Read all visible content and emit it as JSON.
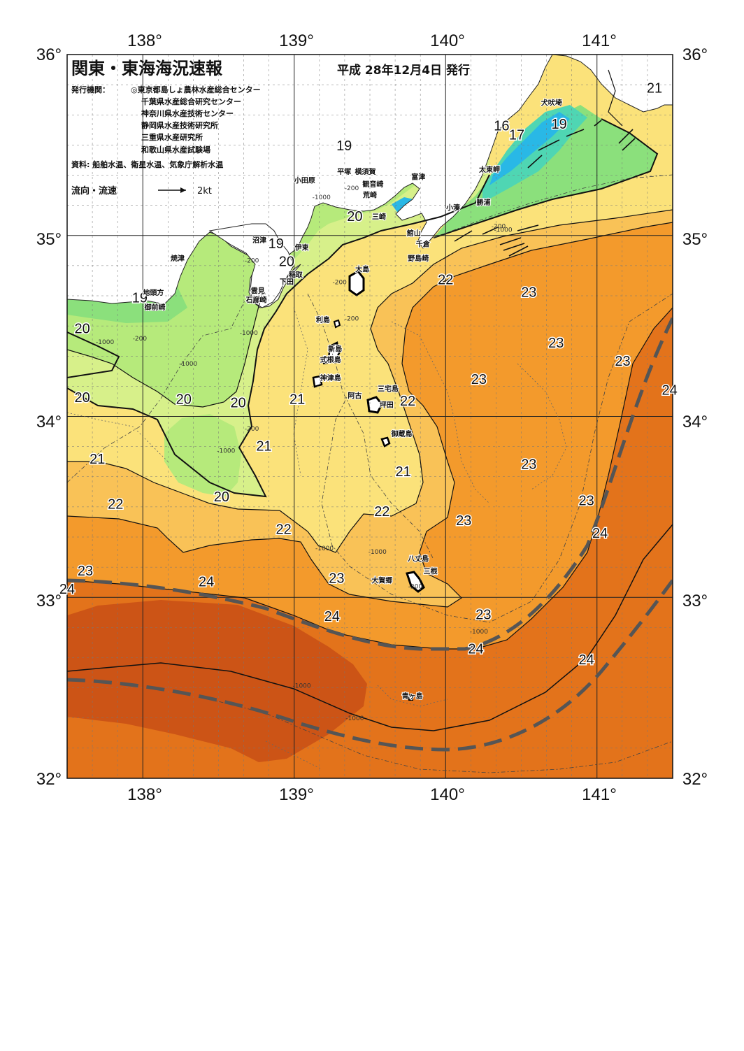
{
  "header": {
    "title": "関東・東海海況速報",
    "date": "平成 28年12月4日 発行",
    "issuer_label": "発行機関：",
    "issuers": [
      "◎東京都島しょ農林水産総合センター",
      "千葉県水産総合研究センター",
      "神奈川県水産技術センター",
      "静岡県水産技術研究所",
      "三重県水産研究所",
      "和歌山県水産試験場"
    ],
    "source": "資料: 船舶水温、衛星水温、気象庁解析水温",
    "flow_legend": "流向・流速",
    "flow_scale": "2kt"
  },
  "axes": {
    "lon_top": [
      "138°",
      "139°",
      "140°",
      "141°"
    ],
    "lon_bottom": [
      "138°",
      "139°",
      "140°",
      "141°"
    ],
    "lat_left": [
      "36°",
      "35°",
      "34°",
      "33°",
      "32°"
    ],
    "lat_right": [
      "36°",
      "35°",
      "34°",
      "33°",
      "32°"
    ]
  },
  "colors": {
    "t16": "#29b8e6",
    "t17": "#4fd6b3",
    "t18": "#8be07c",
    "t19": "#b6ea7b",
    "t20": "#d7f08a",
    "t21": "#fbe27a",
    "t22": "#f9c257",
    "t23": "#f39a2c",
    "t24": "#e3731b",
    "t25": "#cc5416",
    "land": "#ffffff",
    "kuroshio": "#555555"
  },
  "temp_labels": [
    {
      "text": "21",
      "lon": 141.38,
      "lat": 35.79
    },
    {
      "text": "16",
      "lon": 140.37,
      "lat": 35.58
    },
    {
      "text": "17",
      "lon": 140.47,
      "lat": 35.53
    },
    {
      "text": "19",
      "lon": 140.75,
      "lat": 35.59
    },
    {
      "text": "19",
      "lon": 139.33,
      "lat": 35.47
    },
    {
      "text": "20",
      "lon": 139.4,
      "lat": 35.08
    },
    {
      "text": "19",
      "lon": 138.88,
      "lat": 34.93
    },
    {
      "text": "20",
      "lon": 138.95,
      "lat": 34.83
    },
    {
      "text": "22",
      "lon": 140.0,
      "lat": 34.73
    },
    {
      "text": "23",
      "lon": 140.55,
      "lat": 34.66
    },
    {
      "text": "19",
      "lon": 137.98,
      "lat": 34.63
    },
    {
      "text": "20",
      "lon": 137.6,
      "lat": 34.46
    },
    {
      "text": "23",
      "lon": 140.73,
      "lat": 34.38
    },
    {
      "text": "23",
      "lon": 141.17,
      "lat": 34.28
    },
    {
      "text": "23",
      "lon": 140.22,
      "lat": 34.18
    },
    {
      "text": "24",
      "lon": 141.48,
      "lat": 34.12
    },
    {
      "text": "20",
      "lon": 137.6,
      "lat": 34.08
    },
    {
      "text": "20",
      "lon": 138.27,
      "lat": 34.07
    },
    {
      "text": "20",
      "lon": 138.63,
      "lat": 34.05
    },
    {
      "text": "21",
      "lon": 139.02,
      "lat": 34.07
    },
    {
      "text": "22",
      "lon": 139.75,
      "lat": 34.06
    },
    {
      "text": "21",
      "lon": 138.8,
      "lat": 33.81
    },
    {
      "text": "21",
      "lon": 137.7,
      "lat": 33.74
    },
    {
      "text": "23",
      "lon": 140.55,
      "lat": 33.71
    },
    {
      "text": "21",
      "lon": 139.72,
      "lat": 33.67
    },
    {
      "text": "20",
      "lon": 138.52,
      "lat": 33.53
    },
    {
      "text": "23",
      "lon": 140.93,
      "lat": 33.51
    },
    {
      "text": "22",
      "lon": 137.82,
      "lat": 33.49
    },
    {
      "text": "22",
      "lon": 139.58,
      "lat": 33.45
    },
    {
      "text": "23",
      "lon": 140.12,
      "lat": 33.4
    },
    {
      "text": "22",
      "lon": 138.93,
      "lat": 33.35
    },
    {
      "text": "24",
      "lon": 141.02,
      "lat": 33.33
    },
    {
      "text": "23",
      "lon": 137.62,
      "lat": 33.12
    },
    {
      "text": "24",
      "lon": 138.42,
      "lat": 33.06
    },
    {
      "text": "23",
      "lon": 139.28,
      "lat": 33.08
    },
    {
      "text": "24",
      "lon": 137.5,
      "lat": 33.02
    },
    {
      "text": "23",
      "lon": 140.25,
      "lat": 32.88
    },
    {
      "text": "24",
      "lon": 139.25,
      "lat": 32.87
    },
    {
      "text": "24",
      "lon": 140.2,
      "lat": 32.69
    },
    {
      "text": "24",
      "lon": 140.93,
      "lat": 32.63
    }
  ],
  "place_labels": [
    {
      "text": "犬吠埼",
      "lon": 140.7,
      "lat": 35.72
    },
    {
      "text": "平塚",
      "lon": 139.33,
      "lat": 35.34
    },
    {
      "text": "横須賀",
      "lon": 139.47,
      "lat": 35.34
    },
    {
      "text": "小田原",
      "lon": 139.07,
      "lat": 35.29
    },
    {
      "text": "観音崎",
      "lon": 139.52,
      "lat": 35.27
    },
    {
      "text": "富津",
      "lon": 139.82,
      "lat": 35.31
    },
    {
      "text": "太東岬",
      "lon": 140.29,
      "lat": 35.35
    },
    {
      "text": "荒崎",
      "lon": 139.5,
      "lat": 35.21
    },
    {
      "text": "勝浦",
      "lon": 140.25,
      "lat": 35.17
    },
    {
      "text": "小湊",
      "lon": 140.05,
      "lat": 35.14
    },
    {
      "text": "三崎",
      "lon": 139.56,
      "lat": 35.09
    },
    {
      "text": "館山",
      "lon": 139.79,
      "lat": 35.0
    },
    {
      "text": "沼津",
      "lon": 138.77,
      "lat": 34.96
    },
    {
      "text": "千倉",
      "lon": 139.85,
      "lat": 34.94
    },
    {
      "text": "伊東",
      "lon": 139.05,
      "lat": 34.92
    },
    {
      "text": "焼津",
      "lon": 138.23,
      "lat": 34.86
    },
    {
      "text": "野島崎",
      "lon": 139.82,
      "lat": 34.86
    },
    {
      "text": "大島",
      "lon": 139.45,
      "lat": 34.8
    },
    {
      "text": "稲取",
      "lon": 139.01,
      "lat": 34.77
    },
    {
      "text": "下田",
      "lon": 138.95,
      "lat": 34.73
    },
    {
      "text": "地頭方",
      "lon": 138.07,
      "lat": 34.67
    },
    {
      "text": "雲見",
      "lon": 138.76,
      "lat": 34.68
    },
    {
      "text": "石廊崎",
      "lon": 138.75,
      "lat": 34.63
    },
    {
      "text": "御前崎",
      "lon": 138.08,
      "lat": 34.59
    },
    {
      "text": "利島",
      "lon": 139.19,
      "lat": 34.52
    },
    {
      "text": "新島",
      "lon": 139.27,
      "lat": 34.36
    },
    {
      "text": "式根島",
      "lon": 139.24,
      "lat": 34.3
    },
    {
      "text": "神津島",
      "lon": 139.24,
      "lat": 34.2
    },
    {
      "text": "三宅島",
      "lon": 139.62,
      "lat": 34.14
    },
    {
      "text": "阿古",
      "lon": 139.4,
      "lat": 34.1
    },
    {
      "text": "坪田",
      "lon": 139.61,
      "lat": 34.05
    },
    {
      "text": "御蔵島",
      "lon": 139.71,
      "lat": 33.89
    },
    {
      "text": "八丈島",
      "lon": 139.82,
      "lat": 33.2
    },
    {
      "text": "三根",
      "lon": 139.9,
      "lat": 33.13
    },
    {
      "text": "大賀郷",
      "lon": 139.58,
      "lat": 33.08
    },
    {
      "text": "青ヶ島",
      "lon": 139.78,
      "lat": 32.44
    }
  ],
  "depth_labels": [
    {
      "text": "-200",
      "lon": 139.38,
      "lat": 35.25
    },
    {
      "text": "-1000",
      "lon": 139.18,
      "lat": 35.2
    },
    {
      "text": "-200",
      "lon": 138.72,
      "lat": 34.85
    },
    {
      "text": "-200",
      "lon": 139.3,
      "lat": 34.73
    },
    {
      "text": "-200",
      "lon": 139.38,
      "lat": 34.53
    },
    {
      "text": "-1000",
      "lon": 138.7,
      "lat": 34.45
    },
    {
      "text": "-1000",
      "lon": 137.75,
      "lat": 34.4
    },
    {
      "text": "-200",
      "lon": 137.98,
      "lat": 34.42
    },
    {
      "text": "-1000",
      "lon": 138.3,
      "lat": 34.28
    },
    {
      "text": "-200",
      "lon": 138.72,
      "lat": 33.92
    },
    {
      "text": "-1000",
      "lon": 138.55,
      "lat": 33.8
    },
    {
      "text": "-1000",
      "lon": 140.38,
      "lat": 35.02
    },
    {
      "text": "-200",
      "lon": 140.35,
      "lat": 35.04
    },
    {
      "text": "-1000",
      "lon": 139.2,
      "lat": 33.26
    },
    {
      "text": "-1000",
      "lon": 139.55,
      "lat": 33.24
    },
    {
      "text": "-200",
      "lon": 139.8,
      "lat": 33.05
    },
    {
      "text": "-1000",
      "lon": 140.22,
      "lat": 32.8
    },
    {
      "text": "-1000",
      "lon": 139.05,
      "lat": 32.5
    },
    {
      "text": "-1000",
      "lon": 139.4,
      "lat": 32.32
    }
  ]
}
